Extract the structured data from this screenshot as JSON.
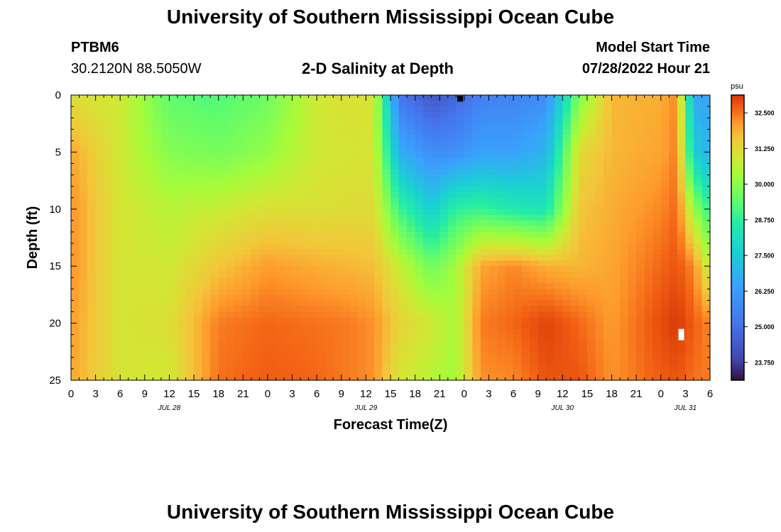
{
  "page": {
    "title": "University of Southern Mississippi Ocean Cube",
    "bottom_title": "University of Southern Mississippi Ocean Cube"
  },
  "station": {
    "id": "PTBM6",
    "coords": "30.2120N  88.5050W"
  },
  "model": {
    "label": "Model Start Time",
    "datetime": "07/28/2022 Hour 21"
  },
  "chart_data": {
    "type": "heatmap",
    "title": "2-D Salinity at Depth",
    "xlabel": "Forecast Time(Z)",
    "ylabel": "Depth (ft)",
    "x_range_hours": [
      0,
      78
    ],
    "y_range_ft": [
      0,
      25
    ],
    "y_inverted": true,
    "x_tick_values": [
      0,
      3,
      6,
      9,
      12,
      15,
      18,
      21,
      24,
      27,
      30,
      33,
      36,
      39,
      42,
      45,
      48,
      51,
      54,
      57,
      60,
      63,
      66,
      69,
      72,
      75,
      78
    ],
    "x_tick_labels": [
      "0",
      "3",
      "6",
      "9",
      "12",
      "15",
      "18",
      "21",
      "0",
      "3",
      "6",
      "9",
      "12",
      "15",
      "18",
      "21",
      "0",
      "3",
      "6",
      "9",
      "12",
      "15",
      "18",
      "21",
      "0",
      "3",
      "6"
    ],
    "y_tick_values": [
      0,
      5,
      10,
      15,
      20,
      25
    ],
    "y_tick_labels": [
      "0",
      "5",
      "10",
      "15",
      "20",
      "25"
    ],
    "date_labels": [
      {
        "text": "JUL 28",
        "hour": 12
      },
      {
        "text": "JUL 29",
        "hour": 36
      },
      {
        "text": "JUL 30",
        "hour": 60
      },
      {
        "text": "JUL 31",
        "hour": 75
      }
    ],
    "colorbar": {
      "unit": "psu",
      "min": 23.125,
      "max": 33.125,
      "tick_values": [
        32.5,
        31.25,
        30.0,
        28.75,
        27.5,
        26.25,
        25.0,
        23.75
      ],
      "tick_labels": [
        "32.500",
        "31.250",
        "30.000",
        "28.750",
        "27.500",
        "26.250",
        "25.000",
        "23.750"
      ]
    },
    "grid": false,
    "field_nodes": [
      {
        "hour": 0,
        "depths": [
          0,
          5,
          10,
          15,
          20,
          25
        ],
        "values": [
          31.1,
          32.0,
          32.2,
          32.2,
          32.1,
          32.0
        ]
      },
      {
        "hour": 6,
        "depths": [
          0,
          5,
          10,
          15,
          20,
          25
        ],
        "values": [
          30.9,
          30.9,
          31.0,
          31.0,
          31.0,
          31.0
        ]
      },
      {
        "hour": 12,
        "depths": [
          0,
          5,
          10,
          15,
          20,
          25
        ],
        "values": [
          29.4,
          29.9,
          30.6,
          30.9,
          31.1,
          30.9
        ]
      },
      {
        "hour": 18,
        "depths": [
          0,
          5,
          10,
          15,
          20,
          25
        ],
        "values": [
          29.2,
          29.7,
          30.8,
          31.6,
          32.4,
          32.5
        ]
      },
      {
        "hour": 24,
        "depths": [
          0,
          5,
          10,
          15,
          20,
          25
        ],
        "values": [
          29.6,
          30.1,
          31.1,
          32.1,
          32.6,
          32.7
        ]
      },
      {
        "hour": 30,
        "depths": [
          0,
          5,
          10,
          15,
          20,
          25
        ],
        "values": [
          30.9,
          30.9,
          31.1,
          31.9,
          32.5,
          32.6
        ]
      },
      {
        "hour": 34,
        "depths": [
          0,
          5,
          10,
          15,
          20,
          25
        ],
        "values": [
          31.1,
          31.0,
          31.2,
          31.8,
          32.4,
          32.4
        ]
      },
      {
        "hour": 37,
        "depths": [
          0,
          5,
          10,
          15,
          20,
          25
        ],
        "values": [
          31.0,
          31.0,
          31.2,
          31.7,
          32.2,
          32.2
        ]
      },
      {
        "hour": 40,
        "depths": [
          0,
          5,
          10,
          15,
          20,
          25
        ],
        "values": [
          25.2,
          26.8,
          29.0,
          30.8,
          31.4,
          31.0
        ]
      },
      {
        "hour": 44,
        "depths": [
          0,
          5,
          10,
          15,
          20,
          25
        ],
        "values": [
          24.3,
          25.8,
          27.6,
          29.6,
          30.9,
          30.6
        ]
      },
      {
        "hour": 47,
        "depths": [
          0,
          5,
          10,
          15,
          20,
          25
        ],
        "values": [
          24.7,
          25.9,
          28.8,
          30.3,
          30.4,
          30.3
        ]
      },
      {
        "hour": 50,
        "depths": [
          0,
          5,
          10,
          15,
          20,
          25
        ],
        "values": [
          25.5,
          26.4,
          28.9,
          32.0,
          32.4,
          32.2
        ]
      },
      {
        "hour": 54,
        "depths": [
          0,
          5,
          10,
          15,
          20,
          25
        ],
        "values": [
          25.5,
          26.4,
          28.5,
          32.3,
          32.6,
          32.3
        ]
      },
      {
        "hour": 58,
        "depths": [
          0,
          5,
          10,
          15,
          20,
          25
        ],
        "values": [
          25.8,
          26.9,
          28.3,
          31.9,
          33.0,
          32.8
        ]
      },
      {
        "hour": 62,
        "depths": [
          0,
          5,
          10,
          15,
          20,
          25
        ],
        "values": [
          29.8,
          31.2,
          31.6,
          31.8,
          32.6,
          32.8
        ]
      },
      {
        "hour": 66,
        "depths": [
          0,
          5,
          10,
          15,
          20,
          25
        ],
        "values": [
          31.8,
          31.8,
          31.9,
          32.0,
          32.1,
          32.2
        ]
      },
      {
        "hour": 72,
        "depths": [
          0,
          5,
          10,
          15,
          20,
          25
        ],
        "values": [
          31.9,
          32.0,
          32.3,
          32.6,
          32.9,
          32.7
        ]
      },
      {
        "hour": 74,
        "depths": [
          0,
          5,
          10,
          15,
          20,
          25
        ],
        "values": [
          32.3,
          32.4,
          32.6,
          32.8,
          33.1,
          32.8
        ]
      },
      {
        "hour": 76,
        "depths": [
          0,
          5,
          10,
          15,
          20,
          25
        ],
        "values": [
          26.6,
          27.6,
          30.2,
          32.3,
          32.7,
          32.5
        ]
      },
      {
        "hour": 78,
        "depths": [
          0,
          5,
          10,
          15,
          20,
          25
        ],
        "values": [
          26.4,
          26.9,
          28.8,
          30.6,
          32.3,
          32.4
        ]
      }
    ],
    "markers": [
      {
        "label": "min",
        "hour": 47.5,
        "depth": 0.2,
        "color": "#000000"
      },
      {
        "label": "max",
        "hour": 74.5,
        "depth": 21,
        "color": "#ffffff"
      }
    ]
  }
}
